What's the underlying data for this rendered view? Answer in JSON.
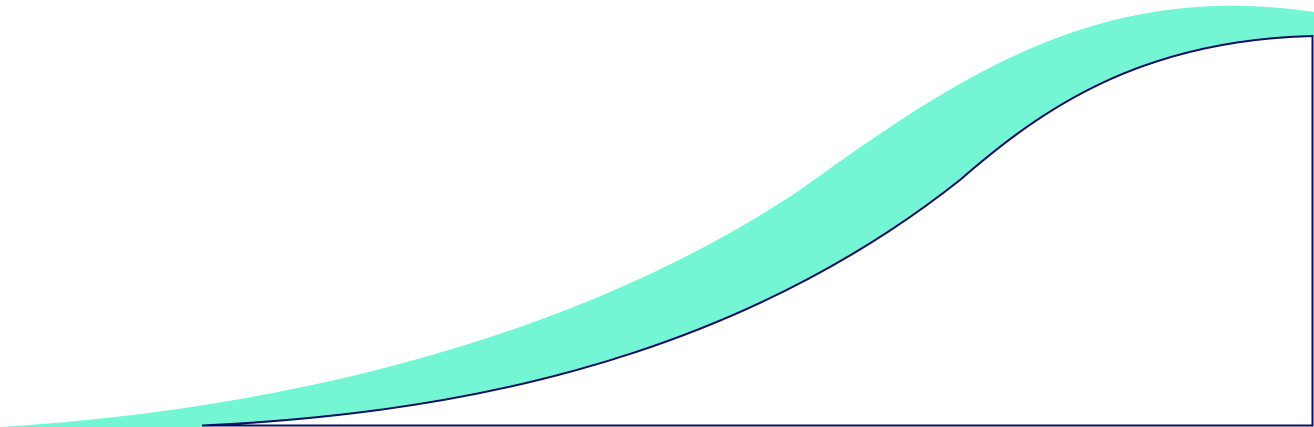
{
  "colors": {
    "background": "#ffffff",
    "accent_fill": "#74F5D3",
    "outline": "#0A0F62"
  },
  "graphic": {
    "shapes": [
      "mint-wave-band",
      "navy-outlined-curve"
    ]
  }
}
